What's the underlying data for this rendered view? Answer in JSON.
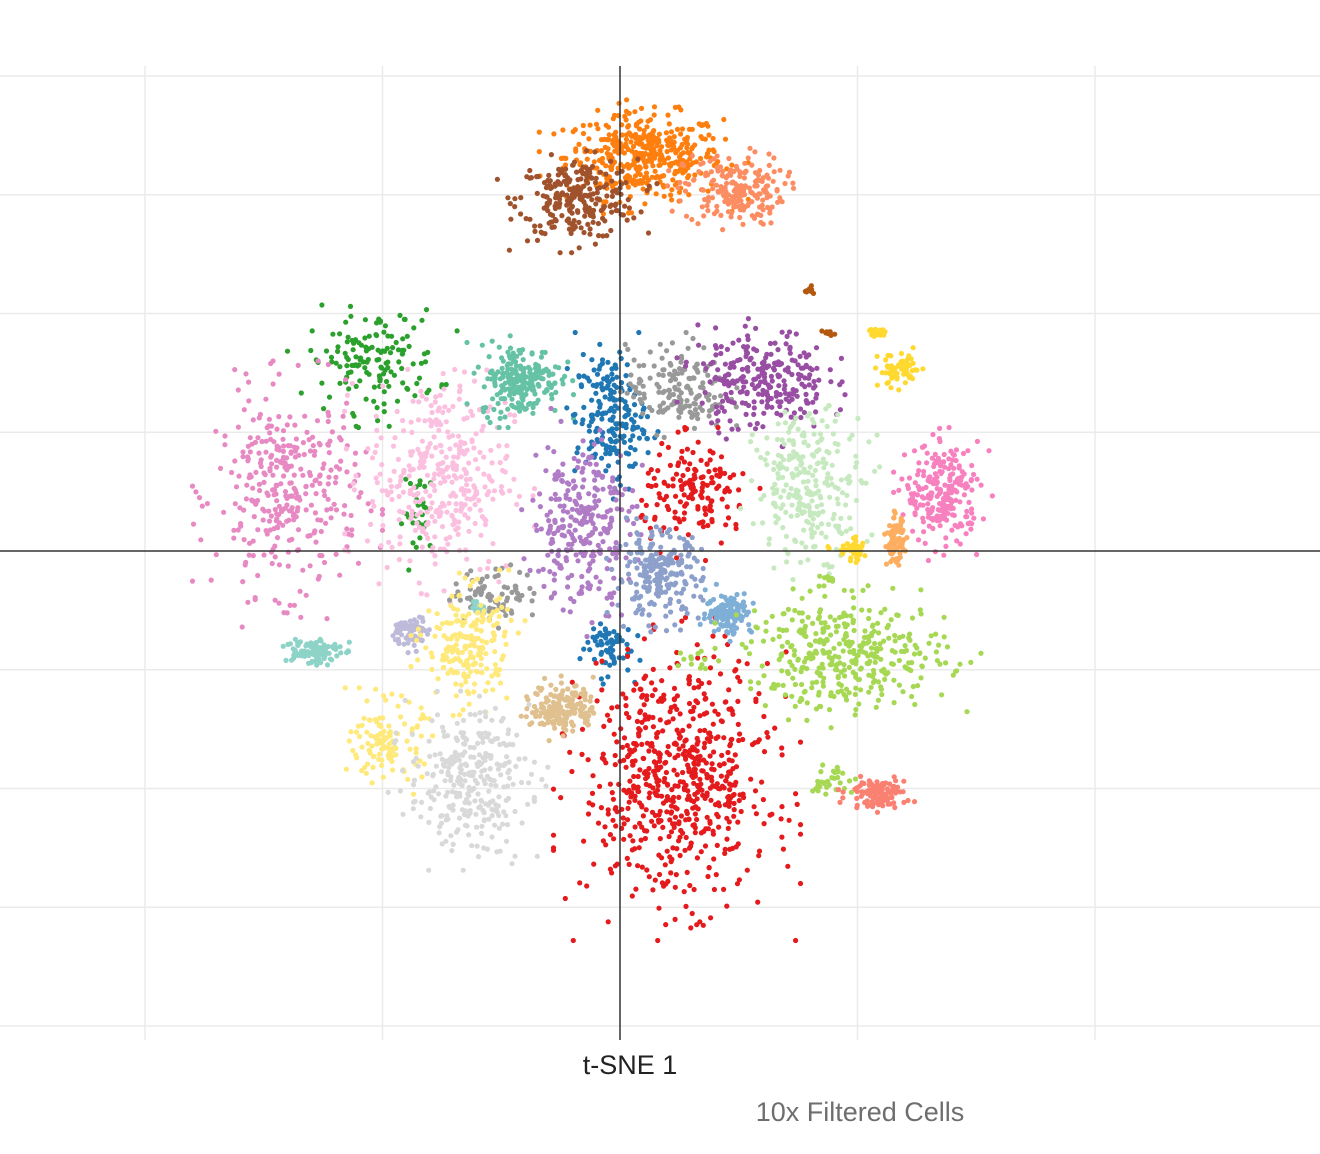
{
  "chart_data": {
    "type": "scatter",
    "title": "",
    "xlabel": "t-SNE 1",
    "ylabel": "",
    "caption": "10x Filtered Cells",
    "xlim": [
      -50,
      50
    ],
    "ylim": [
      -50,
      50
    ],
    "grid": true,
    "legend": "none",
    "series": [
      {
        "color": "#ff7f0e",
        "count": 420,
        "clusters": [
          {
            "cx": 2.5,
            "cy": 41.5,
            "sx": 5.5,
            "sy": 3.0
          }
        ]
      },
      {
        "color": "#a0522d",
        "count": 260,
        "clusters": [
          {
            "cx": -4.5,
            "cy": 37.0,
            "sx": 4.2,
            "sy": 2.8
          }
        ]
      },
      {
        "color": "#fc8d62",
        "count": 200,
        "clusters": [
          {
            "cx": 12.0,
            "cy": 38.0,
            "sx": 3.5,
            "sy": 2.5
          }
        ]
      },
      {
        "color": "#2ca02c",
        "count": 180,
        "clusters": [
          {
            "cx": -26.0,
            "cy": 20.0,
            "sx": 4.5,
            "sy": 3.5
          },
          {
            "cx": -21.0,
            "cy": 4.0,
            "sx": 1.2,
            "sy": 3.0
          }
        ]
      },
      {
        "color": "#e78ac3",
        "count": 340,
        "clusters": [
          {
            "cx": -35.0,
            "cy": 6.0,
            "sx": 5.0,
            "sy": 7.0
          }
        ]
      },
      {
        "color": "#fbc0df",
        "count": 360,
        "clusters": [
          {
            "cx": -19.0,
            "cy": 8.0,
            "sx": 5.0,
            "sy": 7.0
          }
        ]
      },
      {
        "color": "#66c2a5",
        "count": 220,
        "clusters": [
          {
            "cx": -10.5,
            "cy": 18.0,
            "sx": 2.8,
            "sy": 2.5
          }
        ]
      },
      {
        "color": "#1f77b4",
        "count": 260,
        "clusters": [
          {
            "cx": -1.0,
            "cy": 14.0,
            "sx": 2.5,
            "sy": 4.5
          },
          {
            "cx": -1.5,
            "cy": -10.0,
            "sx": 1.8,
            "sy": 2.0
          }
        ]
      },
      {
        "color": "#999999",
        "count": 240,
        "clusters": [
          {
            "cx": 6.0,
            "cy": 17.0,
            "sx": 3.5,
            "sy": 3.0
          },
          {
            "cx": -13.0,
            "cy": -4.5,
            "sx": 3.0,
            "sy": 1.8
          }
        ]
      },
      {
        "color": "#984ea3",
        "count": 260,
        "clusters": [
          {
            "cx": 15.0,
            "cy": 18.0,
            "sx": 4.5,
            "sy": 3.5
          }
        ]
      },
      {
        "color": "#e41a1c",
        "count": 820,
        "clusters": [
          {
            "cx": 8.0,
            "cy": 6.0,
            "sx": 3.8,
            "sy": 3.5
          },
          {
            "cx": 6.0,
            "cy": -24.0,
            "sx": 6.5,
            "sy": 8.5
          }
        ]
      },
      {
        "color": "#c7e9c0",
        "count": 260,
        "clusters": [
          {
            "cx": 20.0,
            "cy": 7.0,
            "sx": 3.8,
            "sy": 5.0
          }
        ]
      },
      {
        "color": "#b07cc6",
        "count": 280,
        "clusters": [
          {
            "cx": -4.0,
            "cy": 3.0,
            "sx": 3.5,
            "sy": 6.0
          }
        ]
      },
      {
        "color": "#8da0cb",
        "count": 220,
        "clusters": [
          {
            "cx": 4.0,
            "cy": -2.5,
            "sx": 3.0,
            "sy": 3.0
          }
        ]
      },
      {
        "color": "#7fafd6",
        "count": 120,
        "clusters": [
          {
            "cx": 11.5,
            "cy": -6.5,
            "sx": 1.6,
            "sy": 1.5
          }
        ]
      },
      {
        "color": "#f781bf",
        "count": 240,
        "clusters": [
          {
            "cx": 34.0,
            "cy": 6.0,
            "sx": 2.6,
            "sy": 3.5
          }
        ]
      },
      {
        "color": "#fdae61",
        "count": 90,
        "clusters": [
          {
            "cx": 29.0,
            "cy": 1.0,
            "sx": 0.6,
            "sy": 1.6
          }
        ]
      },
      {
        "color": "#ffd92f",
        "count": 120,
        "clusters": [
          {
            "cx": 24.5,
            "cy": 0.0,
            "sx": 1.3,
            "sy": 0.8
          },
          {
            "cx": 29.5,
            "cy": 19.0,
            "sx": 1.5,
            "sy": 1.2
          },
          {
            "cx": 27.0,
            "cy": 23.0,
            "sx": 1.0,
            "sy": 0.5
          }
        ]
      },
      {
        "color": "#a6d854",
        "count": 420,
        "clusters": [
          {
            "cx": 24.0,
            "cy": -11.0,
            "sx": 7.0,
            "sy": 3.8
          },
          {
            "cx": 22.0,
            "cy": -24.0,
            "sx": 1.8,
            "sy": 1.2
          },
          {
            "cx": 8.5,
            "cy": -11.5,
            "sx": 1.2,
            "sy": 0.8
          },
          {
            "cx": 22.0,
            "cy": -3.0,
            "sx": 0.8,
            "sy": 0.5
          }
        ]
      },
      {
        "color": "#fa8072",
        "count": 110,
        "clusters": [
          {
            "cx": 27.0,
            "cy": -25.5,
            "sx": 2.0,
            "sy": 1.0
          }
        ]
      },
      {
        "color": "#8dd3c7",
        "count": 120,
        "clusters": [
          {
            "cx": -32.5,
            "cy": -10.5,
            "sx": 2.0,
            "sy": 1.0
          },
          {
            "cx": -15.0,
            "cy": -6.0,
            "sx": 0.8,
            "sy": 0.4
          }
        ]
      },
      {
        "color": "#bebada",
        "count": 70,
        "clusters": [
          {
            "cx": -22.0,
            "cy": -8.5,
            "sx": 1.2,
            "sy": 1.1
          }
        ]
      },
      {
        "color": "#ffe97a",
        "count": 320,
        "clusters": [
          {
            "cx": -24.5,
            "cy": -20.0,
            "sx": 2.5,
            "sy": 2.8
          },
          {
            "cx": -16.0,
            "cy": -10.0,
            "sx": 3.0,
            "sy": 4.0
          }
        ]
      },
      {
        "color": "#d9d9d9",
        "count": 300,
        "clusters": [
          {
            "cx": -16.0,
            "cy": -24.0,
            "sx": 4.2,
            "sy": 4.8
          }
        ]
      },
      {
        "color": "#e0c08e",
        "count": 170,
        "clusters": [
          {
            "cx": -6.0,
            "cy": -16.5,
            "sx": 2.2,
            "sy": 1.8
          }
        ]
      },
      {
        "color": "#b3590f",
        "count": 20,
        "clusters": [
          {
            "cx": 20.0,
            "cy": 27.5,
            "sx": 0.4,
            "sy": 0.3
          },
          {
            "cx": 22.0,
            "cy": 23.0,
            "sx": 0.4,
            "sy": 0.3
          }
        ]
      }
    ]
  }
}
